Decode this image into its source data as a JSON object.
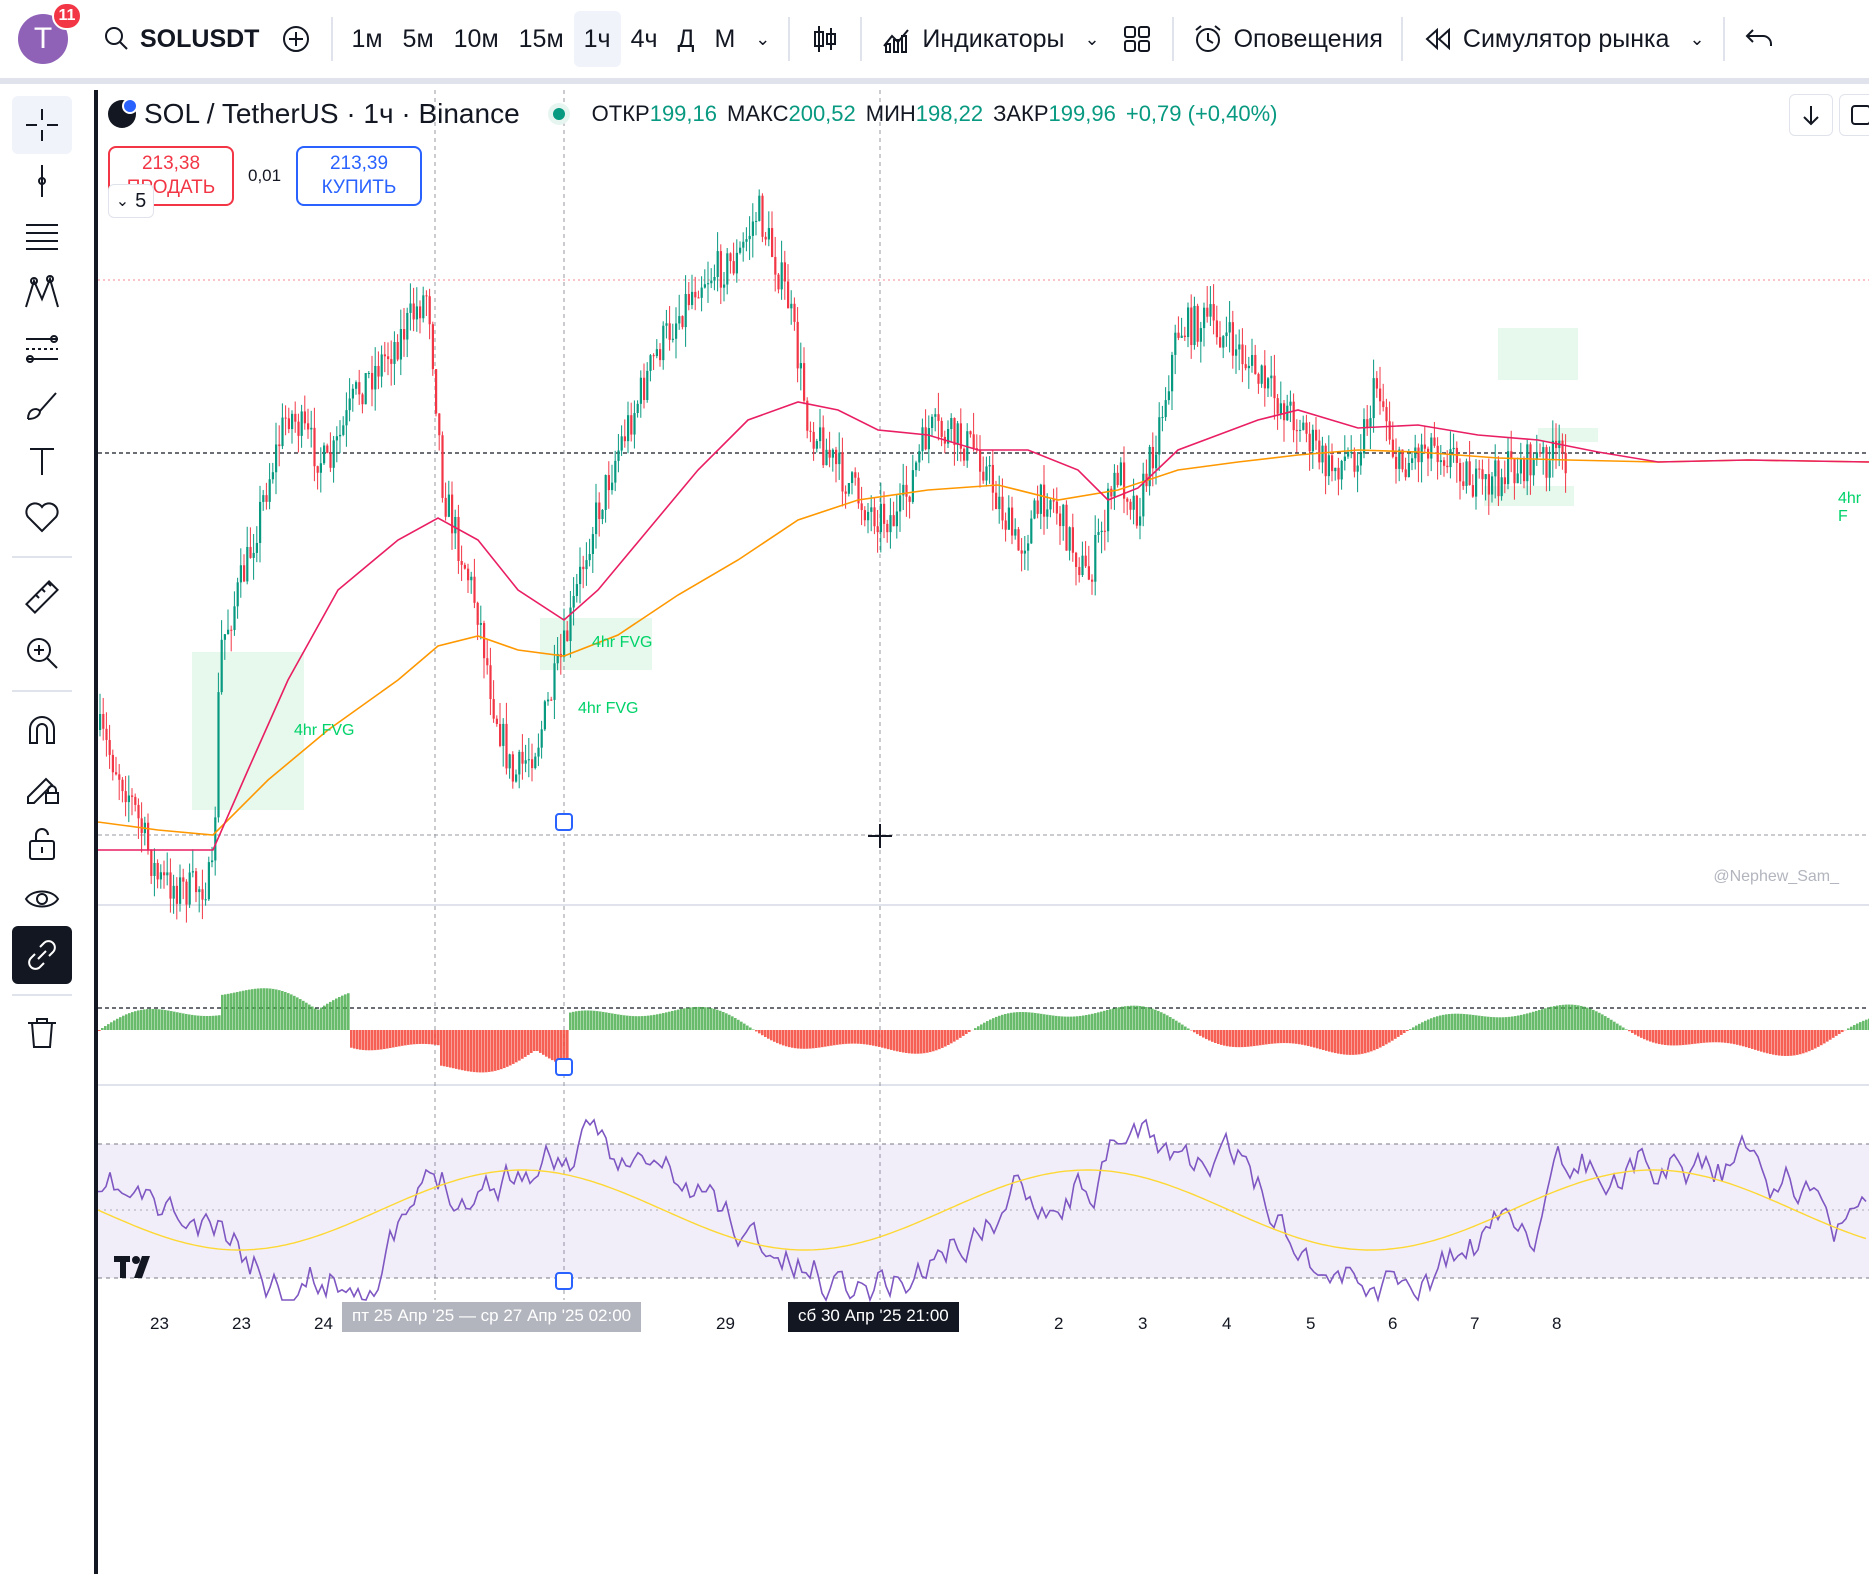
{
  "toolbar": {
    "avatar_letter": "T",
    "notifications": "11",
    "symbol": "SOLUSDT",
    "intervals": [
      "1м",
      "5м",
      "10м",
      "15м",
      "1ч",
      "4ч",
      "Д",
      "М"
    ],
    "active_interval": "1ч",
    "indicators_label": "Индикаторы",
    "alerts_label": "Оповещения",
    "replay_label": "Симулятор рынка"
  },
  "legend": {
    "title": "SOL / TetherUS · 1ч · Binance",
    "open_label": "ОТКР",
    "open": "199,16",
    "high_label": "МАКС",
    "high": "200,52",
    "low_label": "МИН",
    "low": "198,22",
    "close_label": "ЗАКР",
    "close": "199,96",
    "change": "+0,79 (+0,40%)"
  },
  "trade": {
    "sell_price": "213,38",
    "sell_label": "ПРОДАТЬ",
    "spread": "0,01",
    "buy_price": "213,39",
    "buy_label": "КУПИТЬ"
  },
  "collapse_count": "5",
  "fvg_labels": [
    "4hr FVG",
    "4hr FVG",
    "4hr FVG",
    "4hr F"
  ],
  "watermark": "@Nephew_Sam_",
  "x_axis": {
    "labels": [
      "23",
      "23",
      "24",
      "29",
      "2",
      "3",
      "4",
      "5",
      "6",
      "7",
      "8"
    ],
    "highlight_range": "пт 25 Апр '25 — ср 27 Апр '25 02:00",
    "cursor_label": "сб 30 Апр '25 21:00"
  },
  "colors": {
    "up": "#089981",
    "down": "#f23645",
    "ema_fast": "#e91e63",
    "ema_slow": "#ff9800",
    "rsi": "#7e57c2",
    "rsi_ma": "#fdd835",
    "hist_up": "#4caf50",
    "hist_down": "#f44336"
  }
}
